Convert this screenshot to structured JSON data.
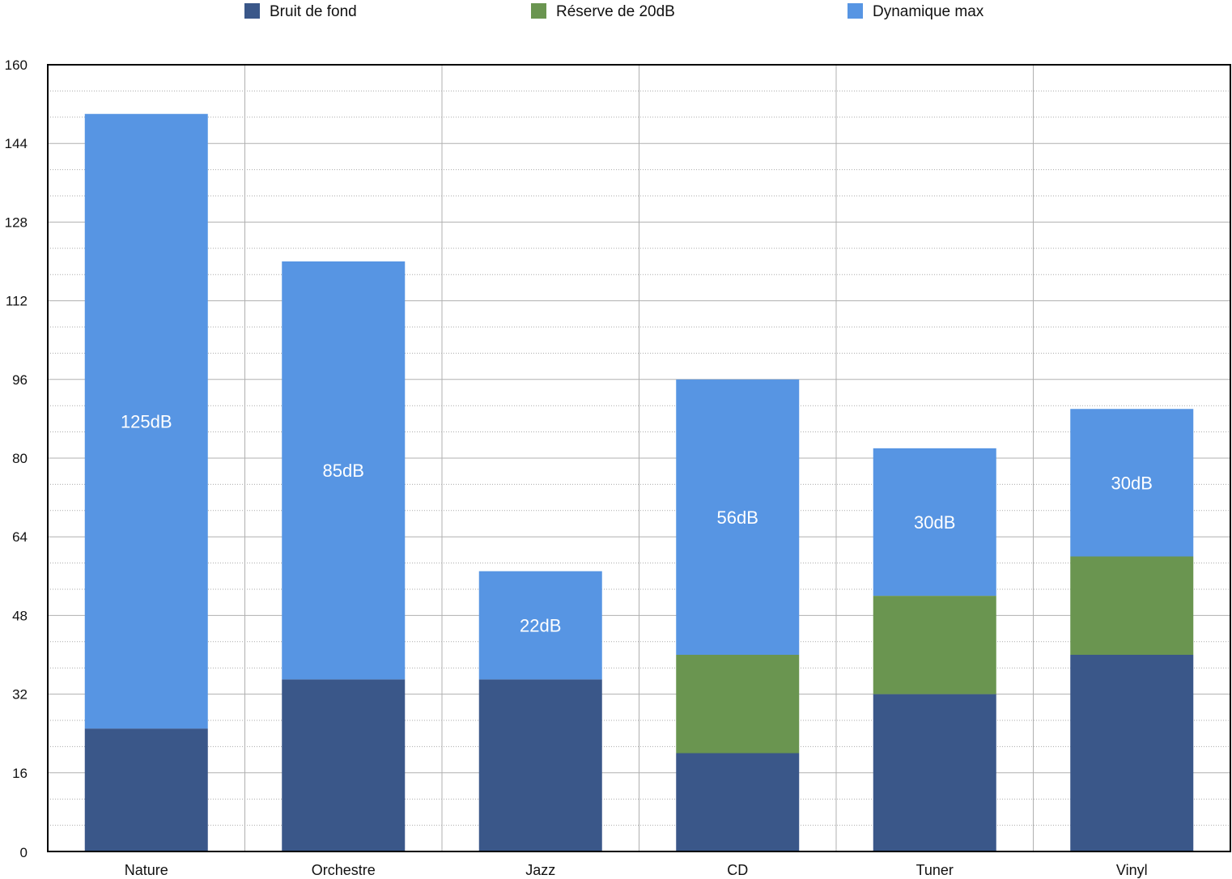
{
  "chart_data": {
    "type": "bar",
    "stacked": true,
    "categories": [
      "Nature",
      "Orchestre",
      "Jazz",
      "CD",
      "Tuner",
      "Vinyl"
    ],
    "series": [
      {
        "name": "Bruit de fond",
        "color": "#3a5789",
        "values": [
          25,
          35,
          35,
          20,
          32,
          40
        ]
      },
      {
        "name": "Réserve de 20dB",
        "color": "#6a9550",
        "values": [
          0,
          0,
          0,
          20,
          20,
          20
        ]
      },
      {
        "name": "Dynamique max",
        "color": "#5795e3",
        "values": [
          125,
          85,
          22,
          56,
          30,
          30
        ]
      }
    ],
    "data_labels": [
      "125dB",
      "85dB",
      "22dB",
      "56dB",
      "30dB",
      "30dB"
    ],
    "title": "",
    "xlabel": "",
    "ylabel": "",
    "ylim": [
      0,
      160
    ],
    "yticks": [
      0,
      16,
      32,
      48,
      64,
      80,
      96,
      112,
      128,
      144,
      160
    ],
    "grid": true,
    "legend_position": "top"
  }
}
